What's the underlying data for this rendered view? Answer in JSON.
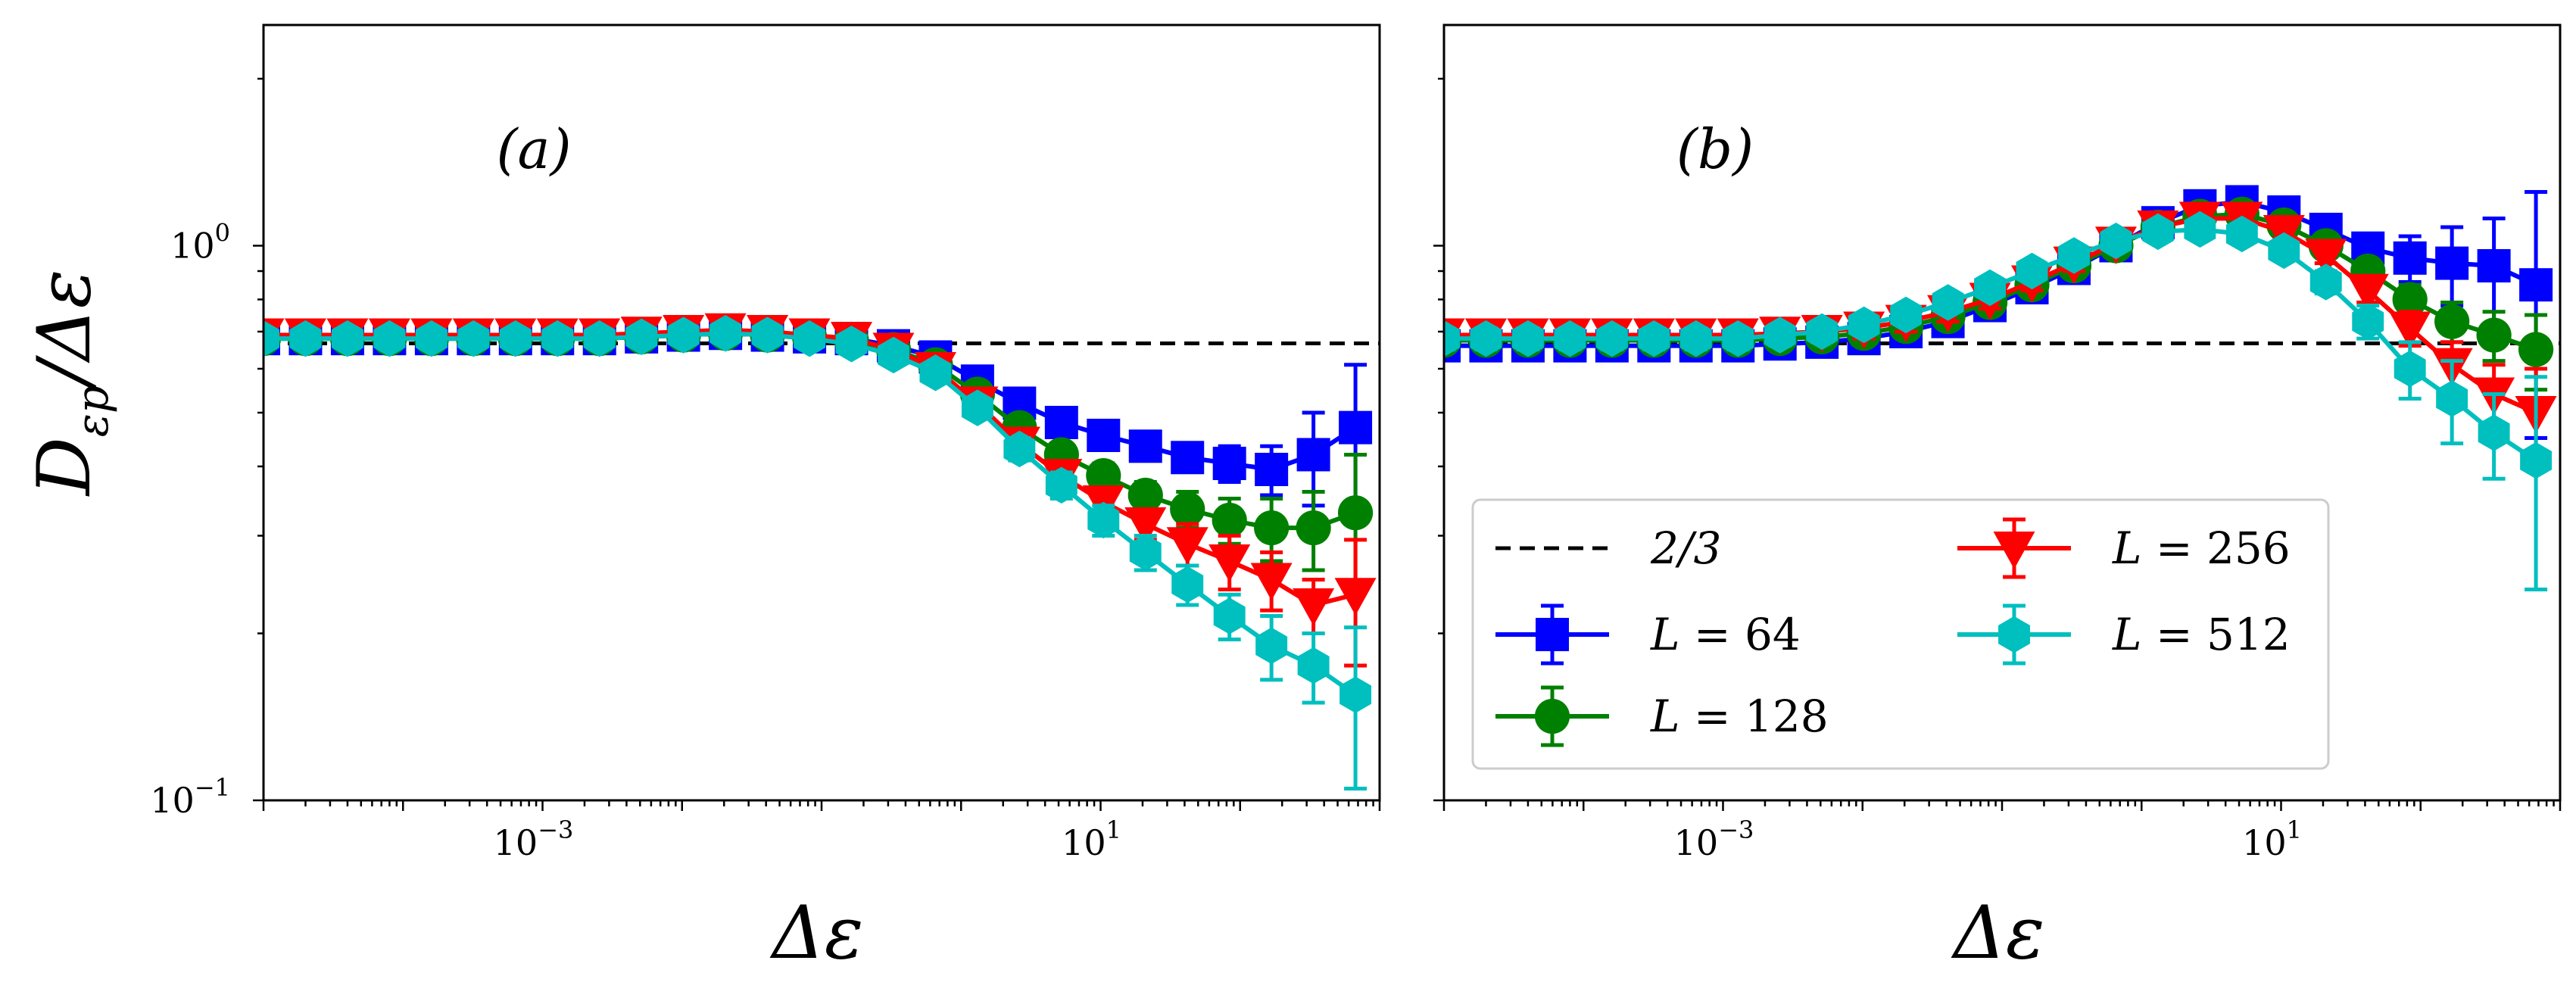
{
  "figure": {
    "ylabel": "Dεp/Δε",
    "ylabel_main": "D",
    "ylabel_sub": "εp",
    "ylabel_tail": "/Δε",
    "xlabel": "Δε"
  },
  "chart_data": [
    {
      "type": "line",
      "panel_label": "(a)",
      "xscale": "log",
      "yscale": "log",
      "xlim": [
        1e-05,
        1000
      ],
      "ylim": [
        0.1,
        2.5
      ],
      "xticks": [
        {
          "value": 0.001,
          "label": "10",
          "exp": "−3"
        },
        {
          "value": 10,
          "label": "10",
          "exp": "1"
        }
      ],
      "yticks": [
        {
          "value": 0.1,
          "label": "10",
          "exp": "−1"
        },
        {
          "value": 1,
          "label": "10",
          "exp": "0"
        }
      ],
      "reference_line": {
        "name": "2/3",
        "y": 0.6667
      },
      "x": [
        1e-05,
        2e-05,
        4e-05,
        8e-05,
        0.00016,
        0.00032,
        0.00064,
        0.00128,
        0.00256,
        0.00512,
        0.01024,
        0.02048,
        0.04096,
        0.08192,
        0.16384,
        0.32768,
        0.65536,
        1.31072,
        2.62144,
        5.24288,
        10.48576,
        20.97152,
        41.94304,
        83.88608,
        167.77216,
        335.54432,
        671.08864
      ],
      "series": [
        {
          "name": "L = 64",
          "label_prefix": "L = ",
          "label_value": "64",
          "color": "#0000ff",
          "marker": "square",
          "values": [
            0.68,
            0.68,
            0.68,
            0.68,
            0.68,
            0.68,
            0.68,
            0.68,
            0.68,
            0.685,
            0.69,
            0.695,
            0.69,
            0.685,
            0.68,
            0.66,
            0.63,
            0.57,
            0.52,
            0.48,
            0.455,
            0.435,
            0.415,
            0.405,
            0.395,
            0.42,
            0.47
          ],
          "error": [
            0.02,
            0.02,
            0.02,
            0.02,
            0.02,
            0.02,
            0.02,
            0.02,
            0.02,
            0.02,
            0.02,
            0.02,
            0.02,
            0.02,
            0.02,
            0.02,
            0.02,
            0.02,
            0.02,
            0.02,
            0.02,
            0.02,
            0.02,
            0.03,
            0.04,
            0.08,
            0.14
          ]
        },
        {
          "name": "L = 128",
          "label_prefix": "L = ",
          "label_value": "128",
          "color": "#008000",
          "marker": "circle",
          "values": [
            0.68,
            0.68,
            0.68,
            0.68,
            0.68,
            0.68,
            0.68,
            0.68,
            0.68,
            0.685,
            0.69,
            0.695,
            0.69,
            0.685,
            0.675,
            0.65,
            0.61,
            0.54,
            0.47,
            0.42,
            0.385,
            0.355,
            0.335,
            0.32,
            0.31,
            0.31,
            0.33
          ],
          "error": [
            0.02,
            0.02,
            0.02,
            0.02,
            0.02,
            0.02,
            0.02,
            0.02,
            0.02,
            0.02,
            0.02,
            0.02,
            0.02,
            0.02,
            0.02,
            0.02,
            0.02,
            0.02,
            0.02,
            0.02,
            0.02,
            0.02,
            0.025,
            0.03,
            0.04,
            0.05,
            0.09
          ]
        },
        {
          "name": "L = 256",
          "label_prefix": "L = ",
          "label_value": "256",
          "color": "#ff0000",
          "marker": "triangle-down",
          "values": [
            0.69,
            0.69,
            0.69,
            0.69,
            0.69,
            0.69,
            0.69,
            0.69,
            0.69,
            0.695,
            0.7,
            0.705,
            0.7,
            0.69,
            0.68,
            0.65,
            0.6,
            0.52,
            0.44,
            0.385,
            0.345,
            0.315,
            0.29,
            0.27,
            0.25,
            0.225,
            0.235
          ],
          "error": [
            0.02,
            0.02,
            0.02,
            0.02,
            0.02,
            0.02,
            0.02,
            0.02,
            0.02,
            0.02,
            0.02,
            0.02,
            0.02,
            0.02,
            0.02,
            0.02,
            0.02,
            0.02,
            0.02,
            0.02,
            0.02,
            0.02,
            0.025,
            0.03,
            0.03,
            0.025,
            0.06
          ]
        },
        {
          "name": "L = 512",
          "label_prefix": "L = ",
          "label_value": "512",
          "color": "#00bfbf",
          "marker": "hexagon",
          "values": [
            0.68,
            0.68,
            0.68,
            0.68,
            0.68,
            0.68,
            0.68,
            0.68,
            0.68,
            0.685,
            0.69,
            0.695,
            0.69,
            0.68,
            0.665,
            0.635,
            0.59,
            0.51,
            0.43,
            0.37,
            0.32,
            0.28,
            0.245,
            0.215,
            0.19,
            0.175,
            0.155
          ],
          "error": [
            0.02,
            0.02,
            0.02,
            0.02,
            0.02,
            0.02,
            0.02,
            0.02,
            0.02,
            0.02,
            0.02,
            0.02,
            0.02,
            0.02,
            0.02,
            0.02,
            0.02,
            0.02,
            0.02,
            0.02,
            0.02,
            0.02,
            0.02,
            0.02,
            0.025,
            0.025,
            0.05
          ]
        }
      ]
    },
    {
      "type": "line",
      "panel_label": "(b)",
      "xscale": "log",
      "yscale": "log",
      "xlim": [
        1e-05,
        1000
      ],
      "ylim": [
        0.1,
        2.5
      ],
      "xticks": [
        {
          "value": 0.001,
          "label": "10",
          "exp": "−3"
        },
        {
          "value": 10,
          "label": "10",
          "exp": "1"
        }
      ],
      "yticks": [],
      "reference_line": {
        "name": "2/3",
        "y": 0.6667
      },
      "legend": {
        "position": "lower-left",
        "columns": 2,
        "entries": [
          "2/3",
          "L = 64",
          "L = 128",
          "L = 256",
          "L = 512"
        ]
      },
      "x": [
        1e-05,
        2e-05,
        4e-05,
        8e-05,
        0.00016,
        0.00032,
        0.00064,
        0.00128,
        0.00256,
        0.00512,
        0.01024,
        0.02048,
        0.04096,
        0.08192,
        0.16384,
        0.32768,
        0.65536,
        1.31072,
        2.62144,
        5.24288,
        10.48576,
        20.97152,
        41.94304,
        83.88608,
        167.77216,
        335.54432,
        671.08864
      ],
      "series": [
        {
          "name": "L = 64",
          "label_prefix": "L = ",
          "label_value": "64",
          "color": "#0000ff",
          "marker": "square",
          "values": [
            0.66,
            0.66,
            0.66,
            0.66,
            0.66,
            0.66,
            0.66,
            0.66,
            0.665,
            0.67,
            0.68,
            0.7,
            0.73,
            0.78,
            0.84,
            0.91,
            1.0,
            1.1,
            1.18,
            1.2,
            1.15,
            1.07,
            0.99,
            0.95,
            0.93,
            0.92,
            0.85
          ],
          "error": [
            0.03,
            0.03,
            0.03,
            0.03,
            0.03,
            0.03,
            0.03,
            0.03,
            0.03,
            0.03,
            0.03,
            0.03,
            0.03,
            0.03,
            0.03,
            0.03,
            0.03,
            0.03,
            0.03,
            0.04,
            0.04,
            0.05,
            0.06,
            0.09,
            0.15,
            0.2,
            0.4
          ]
        },
        {
          "name": "L = 128",
          "label_prefix": "L = ",
          "label_value": "128",
          "color": "#008000",
          "marker": "circle",
          "values": [
            0.675,
            0.675,
            0.675,
            0.675,
            0.675,
            0.675,
            0.675,
            0.675,
            0.68,
            0.685,
            0.695,
            0.715,
            0.745,
            0.79,
            0.85,
            0.92,
            1.0,
            1.08,
            1.13,
            1.14,
            1.09,
            1.0,
            0.9,
            0.8,
            0.73,
            0.69,
            0.65
          ],
          "error": [
            0.03,
            0.03,
            0.03,
            0.03,
            0.03,
            0.03,
            0.03,
            0.03,
            0.03,
            0.03,
            0.03,
            0.03,
            0.03,
            0.03,
            0.03,
            0.03,
            0.03,
            0.03,
            0.03,
            0.03,
            0.03,
            0.04,
            0.04,
            0.05,
            0.06,
            0.07,
            0.1
          ]
        },
        {
          "name": "L = 256",
          "label_prefix": "L = ",
          "label_value": "256",
          "color": "#ff0000",
          "marker": "triangle-down",
          "values": [
            0.69,
            0.69,
            0.69,
            0.69,
            0.69,
            0.69,
            0.69,
            0.69,
            0.695,
            0.7,
            0.71,
            0.73,
            0.76,
            0.8,
            0.86,
            0.93,
            1.01,
            1.08,
            1.12,
            1.12,
            1.06,
            0.96,
            0.83,
            0.71,
            0.61,
            0.54,
            0.5
          ],
          "error": [
            0.03,
            0.03,
            0.03,
            0.03,
            0.03,
            0.03,
            0.03,
            0.03,
            0.03,
            0.03,
            0.03,
            0.03,
            0.03,
            0.03,
            0.03,
            0.03,
            0.03,
            0.03,
            0.03,
            0.03,
            0.03,
            0.03,
            0.04,
            0.05,
            0.06,
            0.07,
            0.1
          ]
        },
        {
          "name": "L = 512",
          "label_prefix": "L = ",
          "label_value": "512",
          "color": "#00bfbf",
          "marker": "hexagon",
          "values": [
            0.68,
            0.68,
            0.68,
            0.68,
            0.68,
            0.68,
            0.68,
            0.68,
            0.69,
            0.7,
            0.72,
            0.75,
            0.79,
            0.84,
            0.9,
            0.96,
            1.02,
            1.06,
            1.07,
            1.05,
            0.98,
            0.86,
            0.73,
            0.6,
            0.53,
            0.46,
            0.41
          ],
          "error": [
            0.03,
            0.03,
            0.03,
            0.03,
            0.03,
            0.03,
            0.03,
            0.03,
            0.03,
            0.03,
            0.03,
            0.03,
            0.03,
            0.03,
            0.03,
            0.03,
            0.03,
            0.03,
            0.03,
            0.03,
            0.03,
            0.04,
            0.05,
            0.07,
            0.09,
            0.08,
            0.17
          ]
        }
      ]
    }
  ]
}
